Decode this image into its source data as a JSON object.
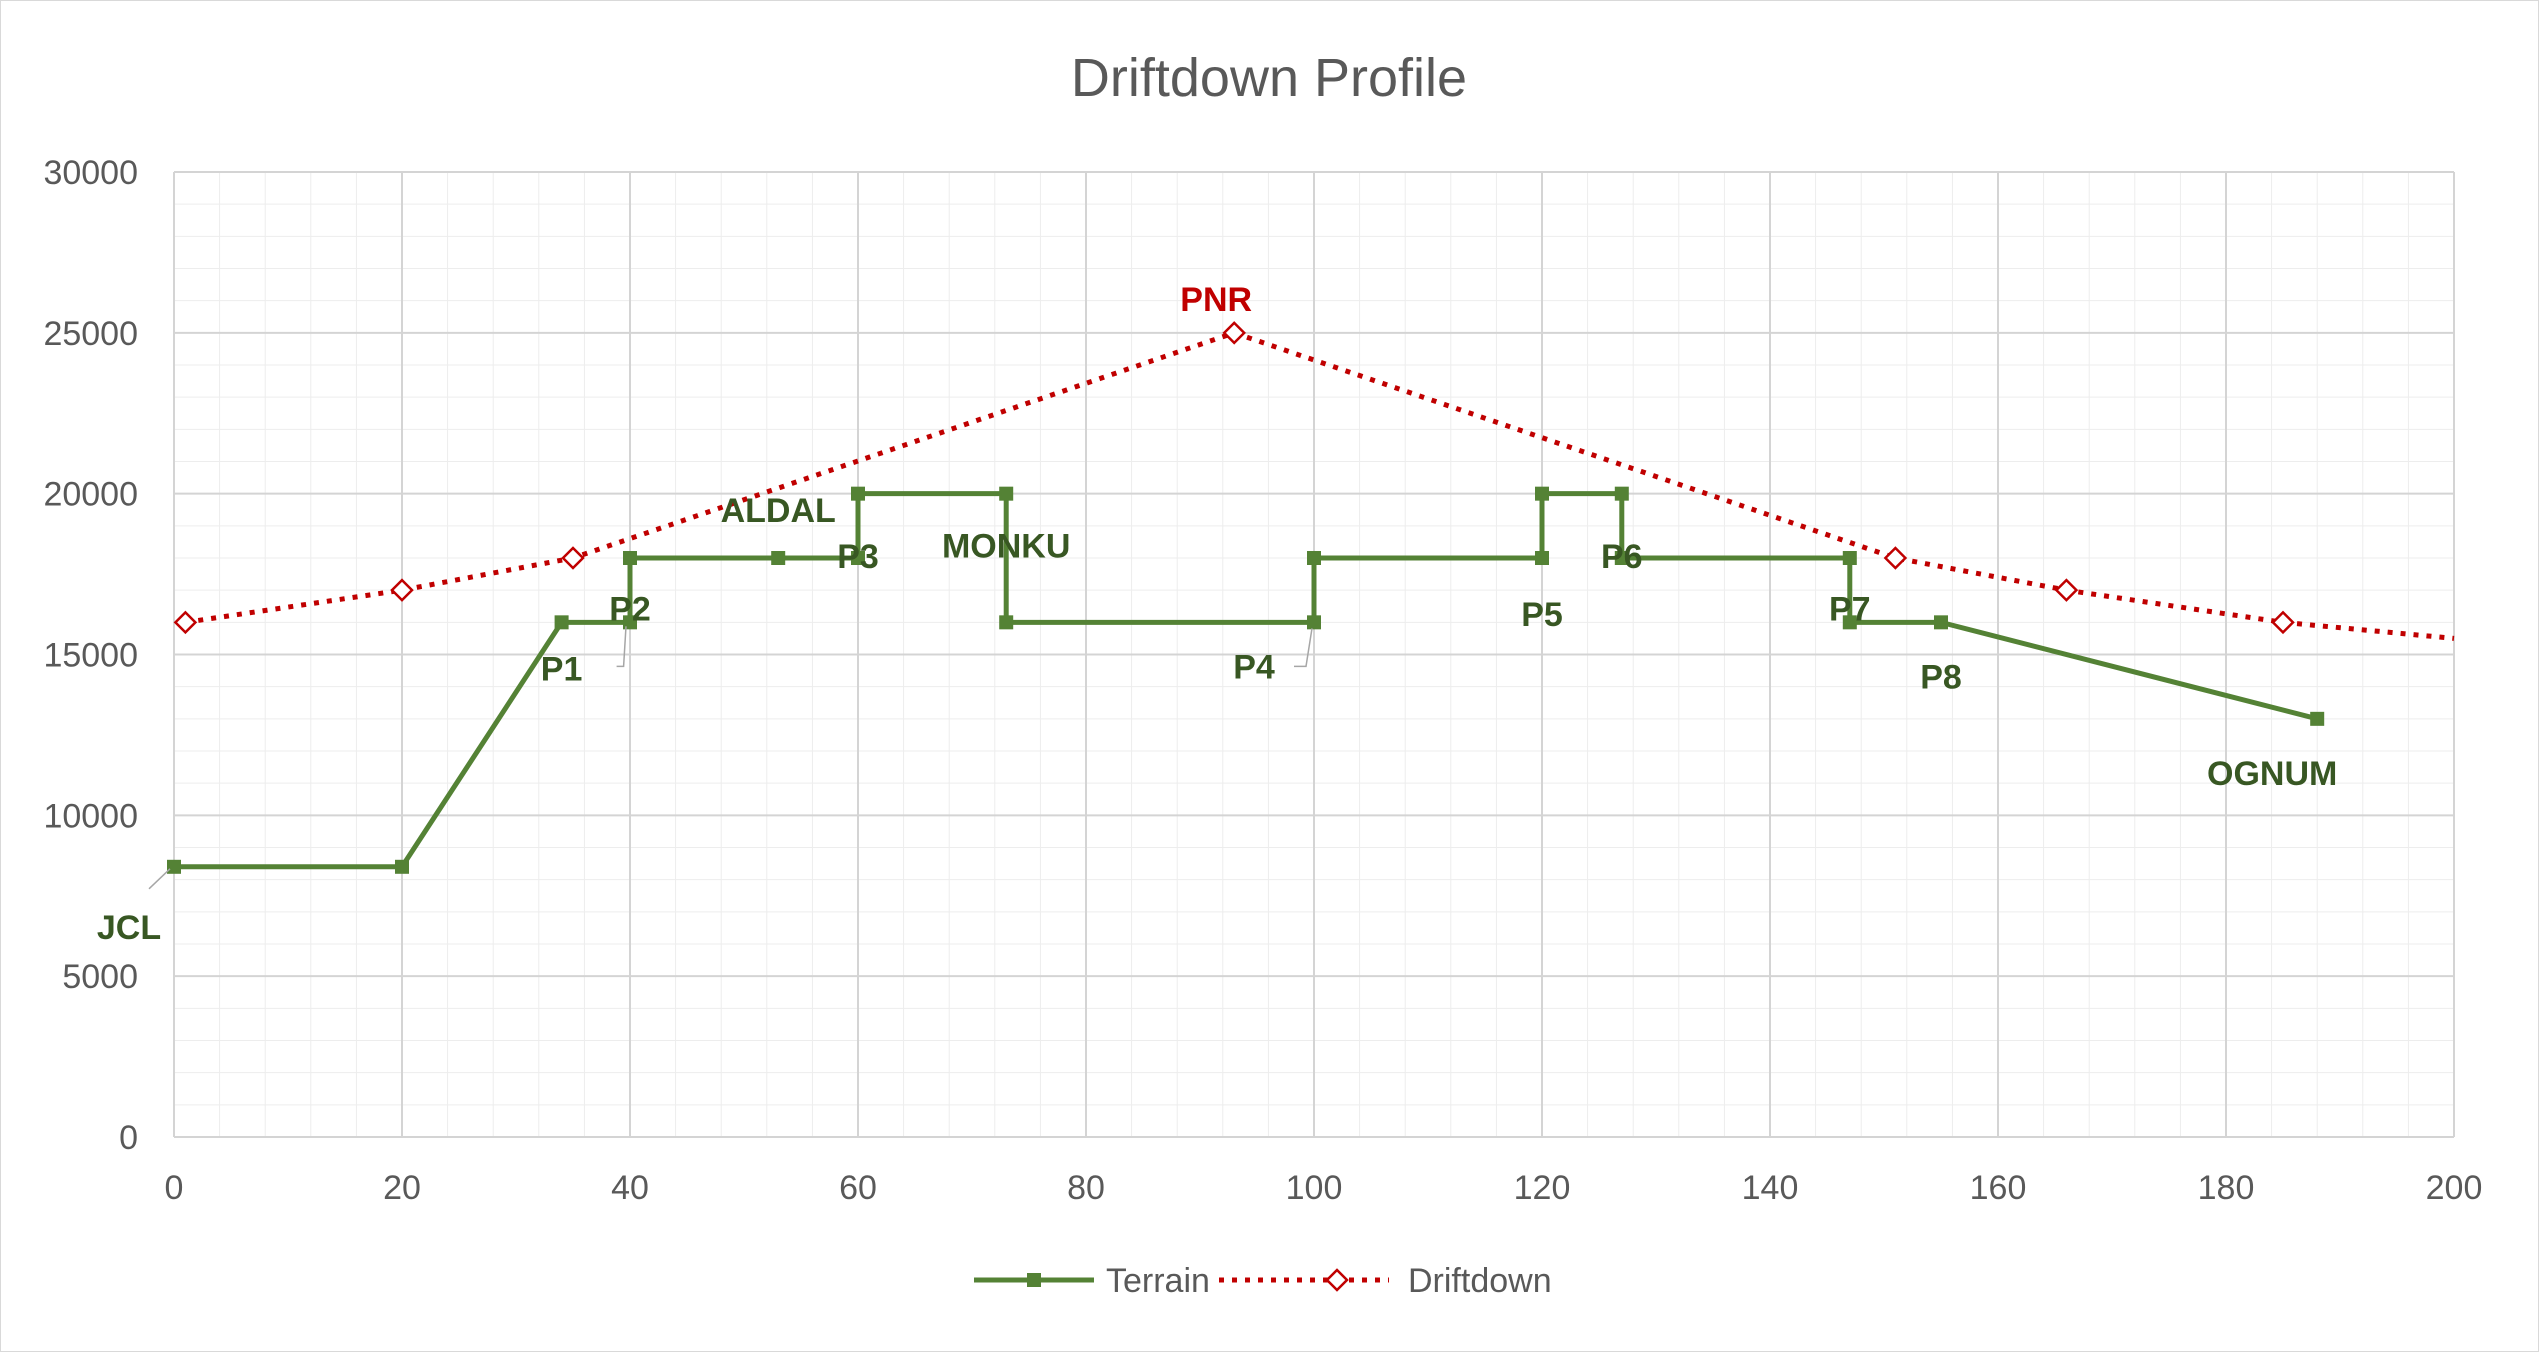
{
  "chart_data": {
    "type": "line",
    "title": "Driftdown Profile",
    "xlim": [
      0,
      200
    ],
    "ylim": [
      0,
      30000
    ],
    "x_ticks": [
      0,
      20,
      40,
      60,
      80,
      100,
      120,
      140,
      160,
      180,
      200
    ],
    "y_ticks": [
      0,
      5000,
      10000,
      15000,
      20000,
      25000,
      30000
    ],
    "grid": true,
    "legend_position": "bottom",
    "series": [
      {
        "name": "Terrain",
        "color": "#548235",
        "line_style": "solid",
        "marker": "square",
        "points": [
          {
            "x": 0,
            "y": 8400,
            "label": "JCL"
          },
          {
            "x": 20,
            "y": 8400
          },
          {
            "x": 34,
            "y": 16000,
            "label": "P1"
          },
          {
            "x": 40,
            "y": 16000,
            "label": "P2"
          },
          {
            "x": 40,
            "y": 18000
          },
          {
            "x": 53,
            "y": 18000,
            "label": "ALDAL"
          },
          {
            "x": 60,
            "y": 18000,
            "label": "P3"
          },
          {
            "x": 60,
            "y": 20000
          },
          {
            "x": 73,
            "y": 20000,
            "label": "MONKU"
          },
          {
            "x": 73,
            "y": 16000
          },
          {
            "x": 100,
            "y": 16000,
            "label": "P4"
          },
          {
            "x": 100,
            "y": 18000
          },
          {
            "x": 120,
            "y": 18000,
            "label": "P5"
          },
          {
            "x": 120,
            "y": 20000
          },
          {
            "x": 127,
            "y": 20000
          },
          {
            "x": 127,
            "y": 18000,
            "label": "P6"
          },
          {
            "x": 147,
            "y": 18000
          },
          {
            "x": 147,
            "y": 16000,
            "label": "P7"
          },
          {
            "x": 155,
            "y": 16000,
            "label": "P8"
          },
          {
            "x": 188,
            "y": 13000,
            "label": "OGNUM"
          }
        ]
      },
      {
        "name": "Driftdown",
        "color": "#c00000",
        "line_style": "dotted",
        "marker": "diamond",
        "points": [
          {
            "x": 1,
            "y": 16000
          },
          {
            "x": 20,
            "y": 17000
          },
          {
            "x": 35,
            "y": 18000
          },
          {
            "x": 93,
            "y": 25000,
            "label": "PNR"
          },
          {
            "x": 151,
            "y": 18000
          },
          {
            "x": 166,
            "y": 17000
          },
          {
            "x": 185,
            "y": 16000
          }
        ],
        "line_end": {
          "x": 200,
          "y": 15500
        }
      }
    ]
  }
}
